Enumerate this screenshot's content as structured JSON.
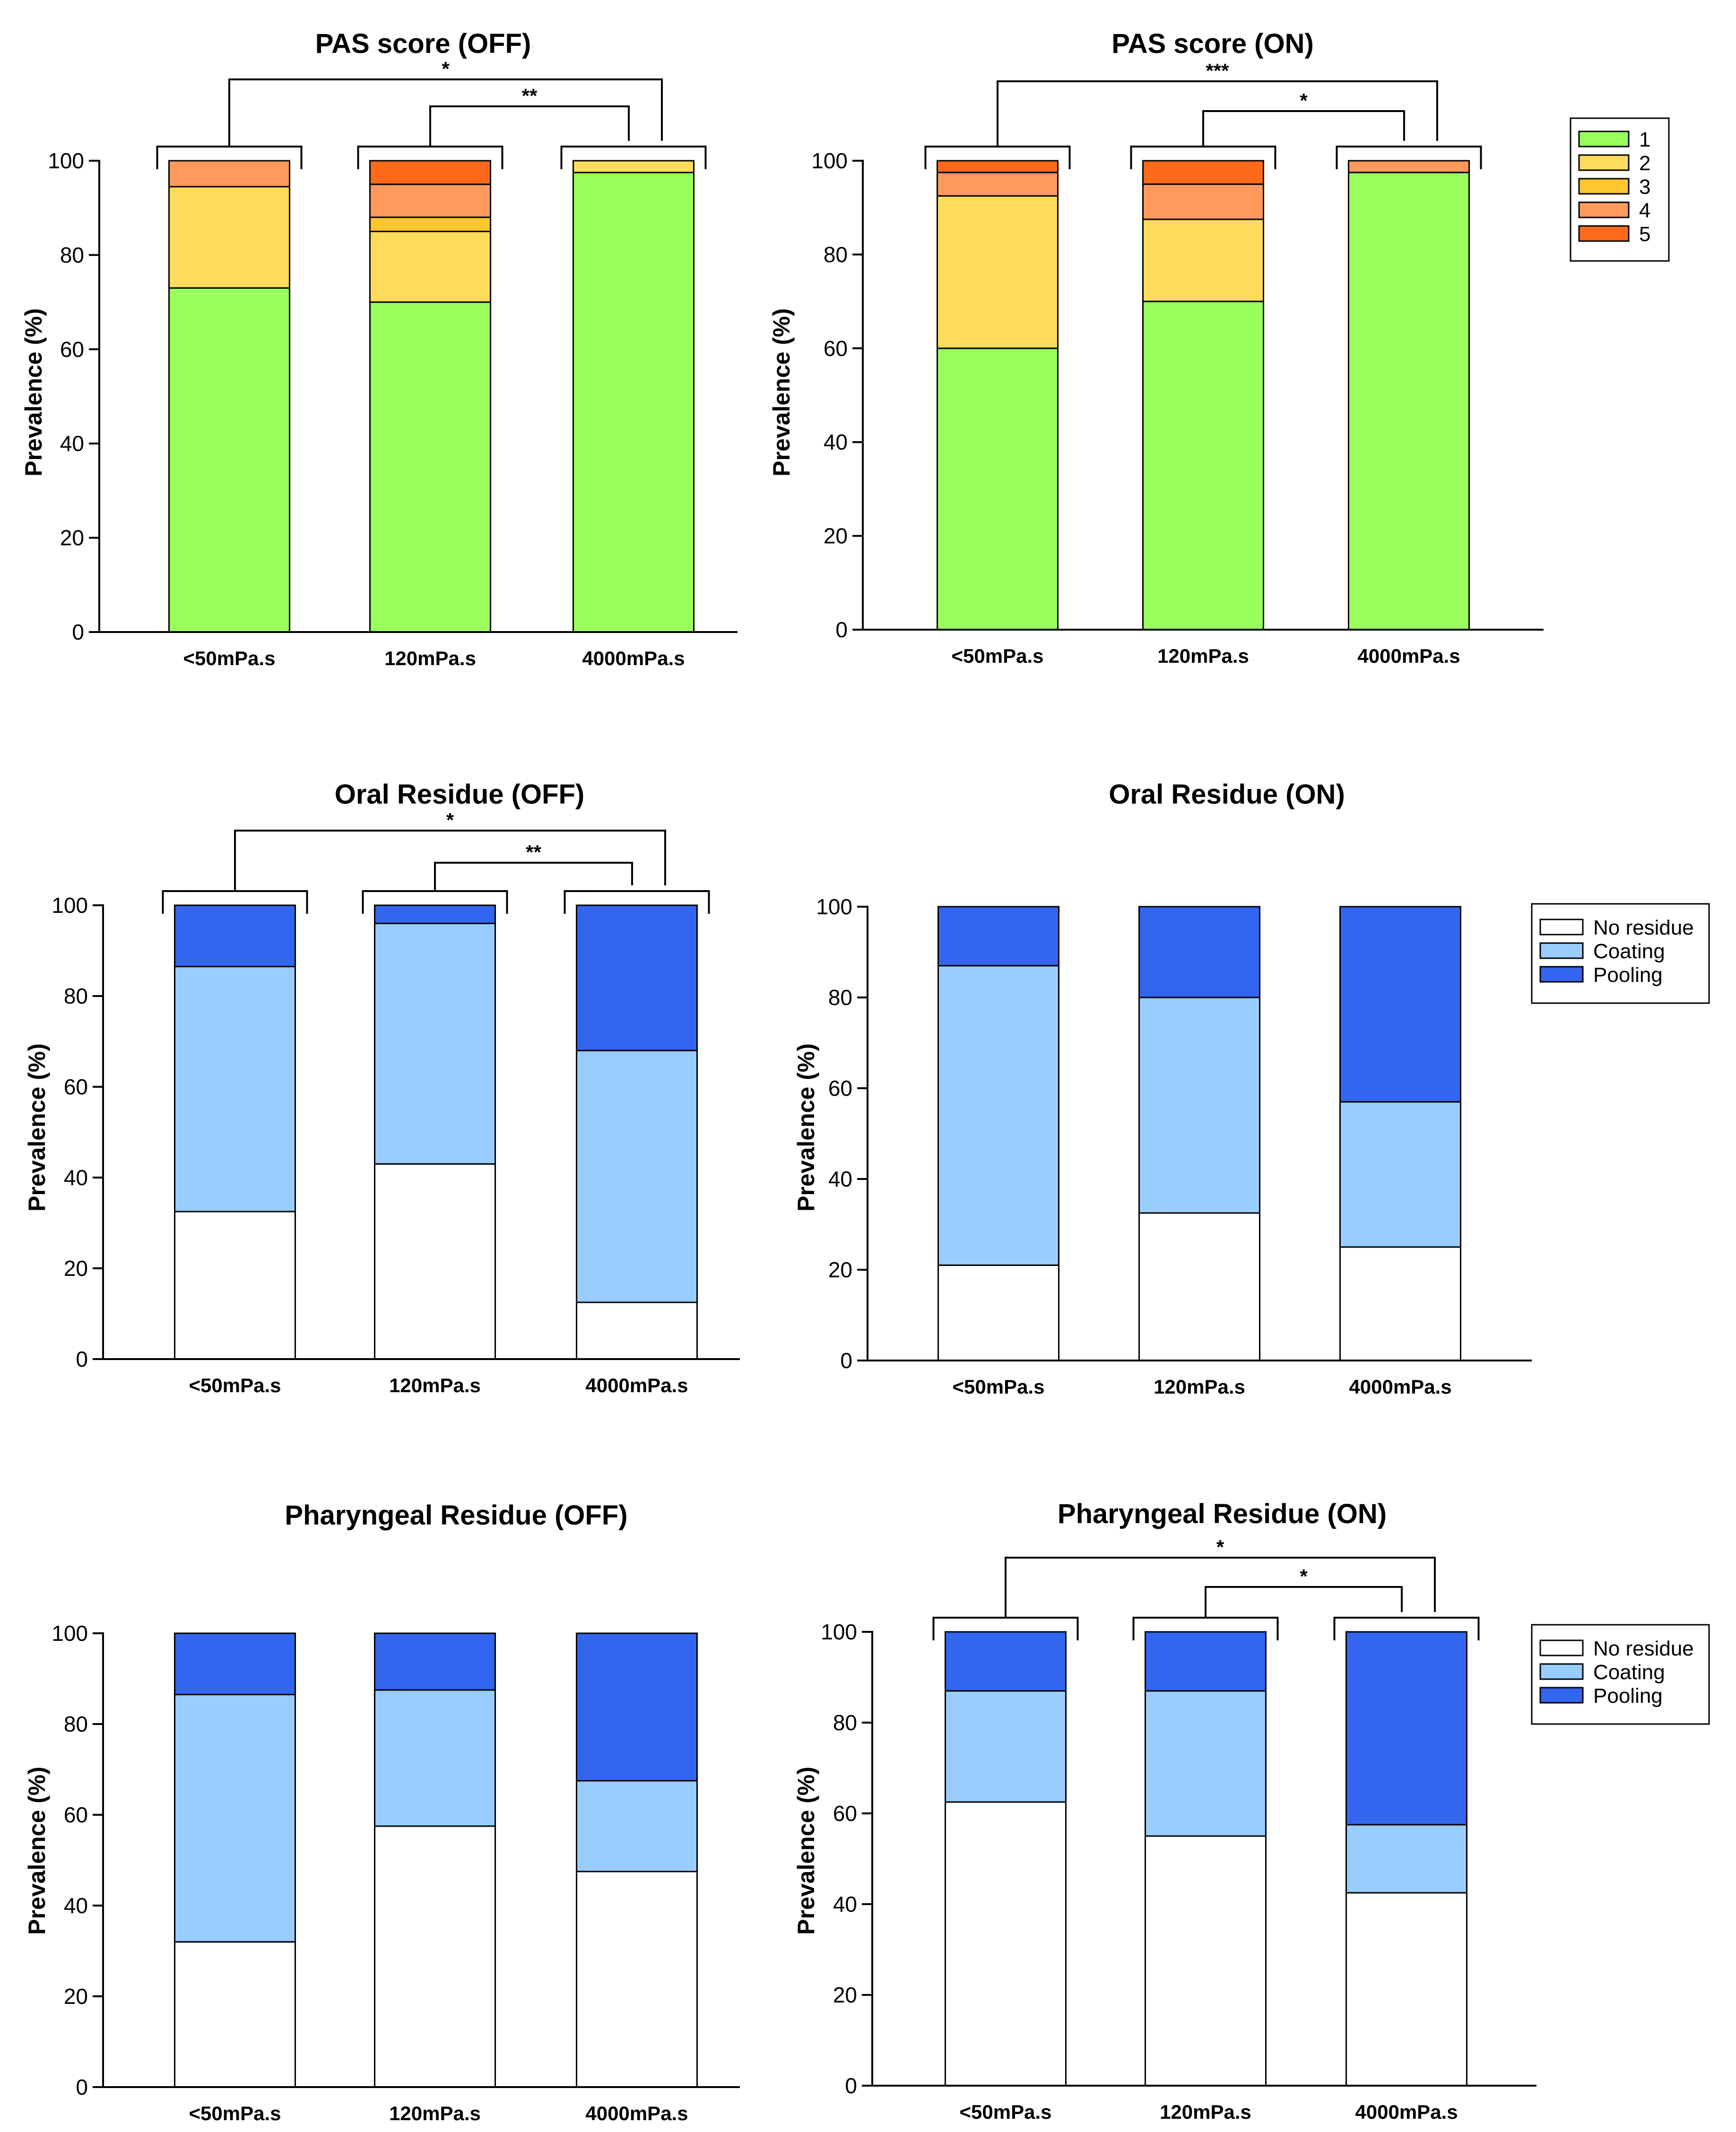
{
  "colors": {
    "pas": [
      "#99ff5c",
      "#ffdb5c",
      "#ffc72e",
      "#ff9a5c",
      "#ff6a1a"
    ],
    "residue": [
      "#ffffff",
      "#99ccff",
      "#3366ee"
    ]
  },
  "legends": {
    "pas": [
      "1",
      "2",
      "3",
      "4",
      "5"
    ],
    "residue": [
      "No residue",
      "Coating",
      "Pooling"
    ]
  },
  "chart_data": [
    {
      "type": "bar",
      "stacked": true,
      "title": "PAS score (OFF)",
      "ylabel": "Prevalence (%)",
      "ylim": [
        0,
        100
      ],
      "yticks": [
        "0",
        "20",
        "40",
        "60",
        "80",
        "100"
      ],
      "categories": [
        "<50mPa.s",
        "120mPa.s",
        "4000mPa.s"
      ],
      "series": [
        {
          "name": "1",
          "values": [
            73,
            70,
            97.5
          ]
        },
        {
          "name": "2",
          "values": [
            21.5,
            15,
            2.5
          ]
        },
        {
          "name": "3",
          "values": [
            0,
            3,
            0
          ]
        },
        {
          "name": "4",
          "values": [
            5.5,
            7,
            0
          ]
        },
        {
          "name": "5",
          "values": [
            0,
            5,
            0
          ]
        }
      ],
      "significance": [
        {
          "from": 0,
          "to": 2,
          "label": "*"
        },
        {
          "from": 1,
          "to": 2,
          "label": "**"
        }
      ]
    },
    {
      "type": "bar",
      "stacked": true,
      "title": "PAS score (ON)",
      "ylabel": "Prevalence (%)",
      "ylim": [
        0,
        100
      ],
      "yticks": [
        "0",
        "20",
        "40",
        "60",
        "80",
        "100"
      ],
      "categories": [
        "<50mPa.s",
        "120mPa.s",
        "4000mPa.s"
      ],
      "series": [
        {
          "name": "1",
          "values": [
            60,
            70,
            97.5
          ]
        },
        {
          "name": "2",
          "values": [
            32.5,
            17.5,
            0
          ]
        },
        {
          "name": "3",
          "values": [
            0,
            0,
            0
          ]
        },
        {
          "name": "4",
          "values": [
            5,
            7.5,
            2.5
          ]
        },
        {
          "name": "5",
          "values": [
            2.5,
            5,
            0
          ]
        }
      ],
      "significance": [
        {
          "from": 0,
          "to": 2,
          "label": "***"
        },
        {
          "from": 1,
          "to": 2,
          "label": "*"
        }
      ],
      "legend": "pas"
    },
    {
      "type": "bar",
      "stacked": true,
      "title": "Oral Residue (OFF)",
      "ylabel": "Prevalence (%)",
      "ylim": [
        0,
        100
      ],
      "yticks": [
        "0",
        "20",
        "40",
        "60",
        "80",
        "100"
      ],
      "categories": [
        "<50mPa.s",
        "120mPa.s",
        "4000mPa.s"
      ],
      "series": [
        {
          "name": "No residue",
          "values": [
            32.5,
            43,
            12.5
          ]
        },
        {
          "name": "Coating",
          "values": [
            54,
            53,
            55.5
          ]
        },
        {
          "name": "Pooling",
          "values": [
            13.5,
            4,
            32
          ]
        }
      ],
      "significance": [
        {
          "from": 0,
          "to": 2,
          "label": "*"
        },
        {
          "from": 1,
          "to": 2,
          "label": "**"
        }
      ]
    },
    {
      "type": "bar",
      "stacked": true,
      "title": "Oral Residue (ON)",
      "ylabel": "Prevalence (%)",
      "ylim": [
        0,
        100
      ],
      "yticks": [
        "0",
        "20",
        "40",
        "60",
        "80",
        "100"
      ],
      "categories": [
        "<50mPa.s",
        "120mPa.s",
        "4000mPa.s"
      ],
      "series": [
        {
          "name": "No residue",
          "values": [
            21,
            32.5,
            25
          ]
        },
        {
          "name": "Coating",
          "values": [
            66,
            47.5,
            32
          ]
        },
        {
          "name": "Pooling",
          "values": [
            13,
            20,
            43
          ]
        }
      ],
      "significance": [],
      "legend": "residue"
    },
    {
      "type": "bar",
      "stacked": true,
      "title": "Pharyngeal Residue (OFF)",
      "ylabel": "Prevalence (%)",
      "ylim": [
        0,
        100
      ],
      "yticks": [
        "0",
        "20",
        "40",
        "60",
        "80",
        "100"
      ],
      "categories": [
        "<50mPa.s",
        "120mPa.s",
        "4000mPa.s"
      ],
      "series": [
        {
          "name": "No residue",
          "values": [
            32,
            57.5,
            47.5
          ]
        },
        {
          "name": "Coating",
          "values": [
            54.5,
            30,
            20
          ]
        },
        {
          "name": "Pooling",
          "values": [
            13.5,
            12.5,
            32.5
          ]
        }
      ],
      "significance": []
    },
    {
      "type": "bar",
      "stacked": true,
      "title": "Pharyngeal Residue (ON)",
      "ylabel": "Prevalence (%)",
      "ylim": [
        0,
        100
      ],
      "yticks": [
        "0",
        "20",
        "40",
        "60",
        "80",
        "100"
      ],
      "categories": [
        "<50mPa.s",
        "120mPa.s",
        "4000mPa.s"
      ],
      "series": [
        {
          "name": "No residue",
          "values": [
            62.5,
            55,
            42.5
          ]
        },
        {
          "name": "Coating",
          "values": [
            24.5,
            32,
            15
          ]
        },
        {
          "name": "Pooling",
          "values": [
            13,
            13,
            42.5
          ]
        }
      ],
      "significance": [
        {
          "from": 0,
          "to": 2,
          "label": "*"
        },
        {
          "from": 1,
          "to": 2,
          "label": "*"
        }
      ],
      "legend": "residue"
    }
  ]
}
